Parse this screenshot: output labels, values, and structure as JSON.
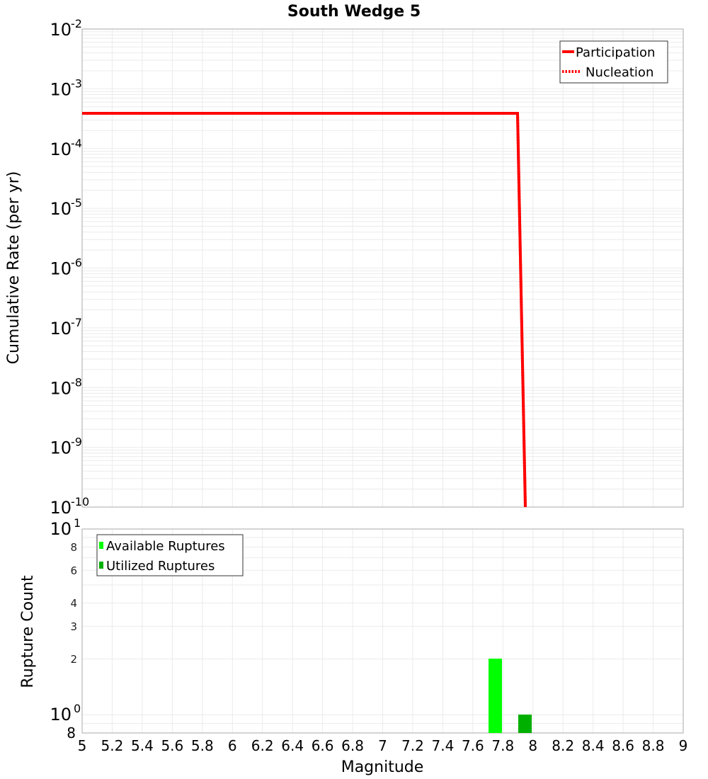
{
  "chart_data": [
    {
      "type": "line",
      "title": "South Wedge 5",
      "xlabel": "Magnitude",
      "ylabel": "Cumulative Rate (per yr)",
      "yscale": "log",
      "xlim": [
        5,
        9
      ],
      "ylim": [
        1e-10,
        0.01
      ],
      "grid": true,
      "legend_position": "top-right",
      "y_tick_labels": [
        "10^-2",
        "10^-3",
        "10^-4",
        "10^-5",
        "10^-6",
        "10^-7",
        "10^-8",
        "10^-9",
        "10^-10"
      ],
      "series": [
        {
          "name": "Participation",
          "style": "solid",
          "color": "#ff0000",
          "x": [
            5.0,
            7.9,
            7.95
          ],
          "y": [
            0.00039,
            0.00039,
            1e-10
          ]
        },
        {
          "name": "Nucleation",
          "style": "dotted",
          "color": "#ff0000",
          "x": [
            5.0,
            7.9,
            7.95
          ],
          "y": [
            0.00039,
            0.00039,
            1e-10
          ]
        }
      ]
    },
    {
      "type": "bar",
      "title": "",
      "xlabel": "Magnitude",
      "ylabel": "Rupture Count",
      "yscale": "log",
      "xlim": [
        5,
        9
      ],
      "ylim": [
        0.8,
        10
      ],
      "grid": true,
      "legend_position": "top-left",
      "x_tick_labels": [
        "5",
        "5.2",
        "5.4",
        "5.6",
        "5.8",
        "6",
        "6.2",
        "6.4",
        "6.6",
        "6.8",
        "7",
        "7.2",
        "7.4",
        "7.6",
        "7.8",
        "8",
        "8.2",
        "8.4",
        "8.6",
        "8.8",
        "9"
      ],
      "y_tick_labels": [
        "10^1",
        "8",
        "6",
        "4",
        "3",
        "2",
        "10^0",
        "8"
      ],
      "series": [
        {
          "name": "Available Ruptures",
          "color": "#00ff00",
          "x": [
            7.75
          ],
          "values": [
            2
          ]
        },
        {
          "name": "Utilized Ruptures",
          "color": "#00b000",
          "x": [
            7.95
          ],
          "values": [
            1
          ]
        }
      ]
    }
  ],
  "top": {
    "title": "South Wedge 5",
    "ylabel": "Cumulative Rate (per yr)",
    "legend": [
      "Participation",
      "Nucleation"
    ],
    "yticks": [
      {
        "base": "10",
        "exp": "-2"
      },
      {
        "base": "10",
        "exp": "-3"
      },
      {
        "base": "10",
        "exp": "-4"
      },
      {
        "base": "10",
        "exp": "-5"
      },
      {
        "base": "10",
        "exp": "-6"
      },
      {
        "base": "10",
        "exp": "-7"
      },
      {
        "base": "10",
        "exp": "-8"
      },
      {
        "base": "10",
        "exp": "-9"
      },
      {
        "base": "10",
        "exp": "-10"
      }
    ]
  },
  "bottom": {
    "ylabel": "Rupture Count",
    "xlabel": "Magnitude",
    "legend": [
      "Available Ruptures",
      "Utilized Ruptures"
    ],
    "ytick_top": {
      "base": "10",
      "exp": "1"
    },
    "ytick_mid": {
      "base": "10",
      "exp": "0"
    },
    "ytick_minor": [
      "8",
      "6",
      "4",
      "3",
      "2"
    ],
    "ytick_bottom": "8",
    "xticks": [
      "5",
      "5.2",
      "5.4",
      "5.6",
      "5.8",
      "6",
      "6.2",
      "6.4",
      "6.6",
      "6.8",
      "7",
      "7.2",
      "7.4",
      "7.6",
      "7.8",
      "8",
      "8.2",
      "8.4",
      "8.6",
      "8.8",
      "9"
    ]
  }
}
